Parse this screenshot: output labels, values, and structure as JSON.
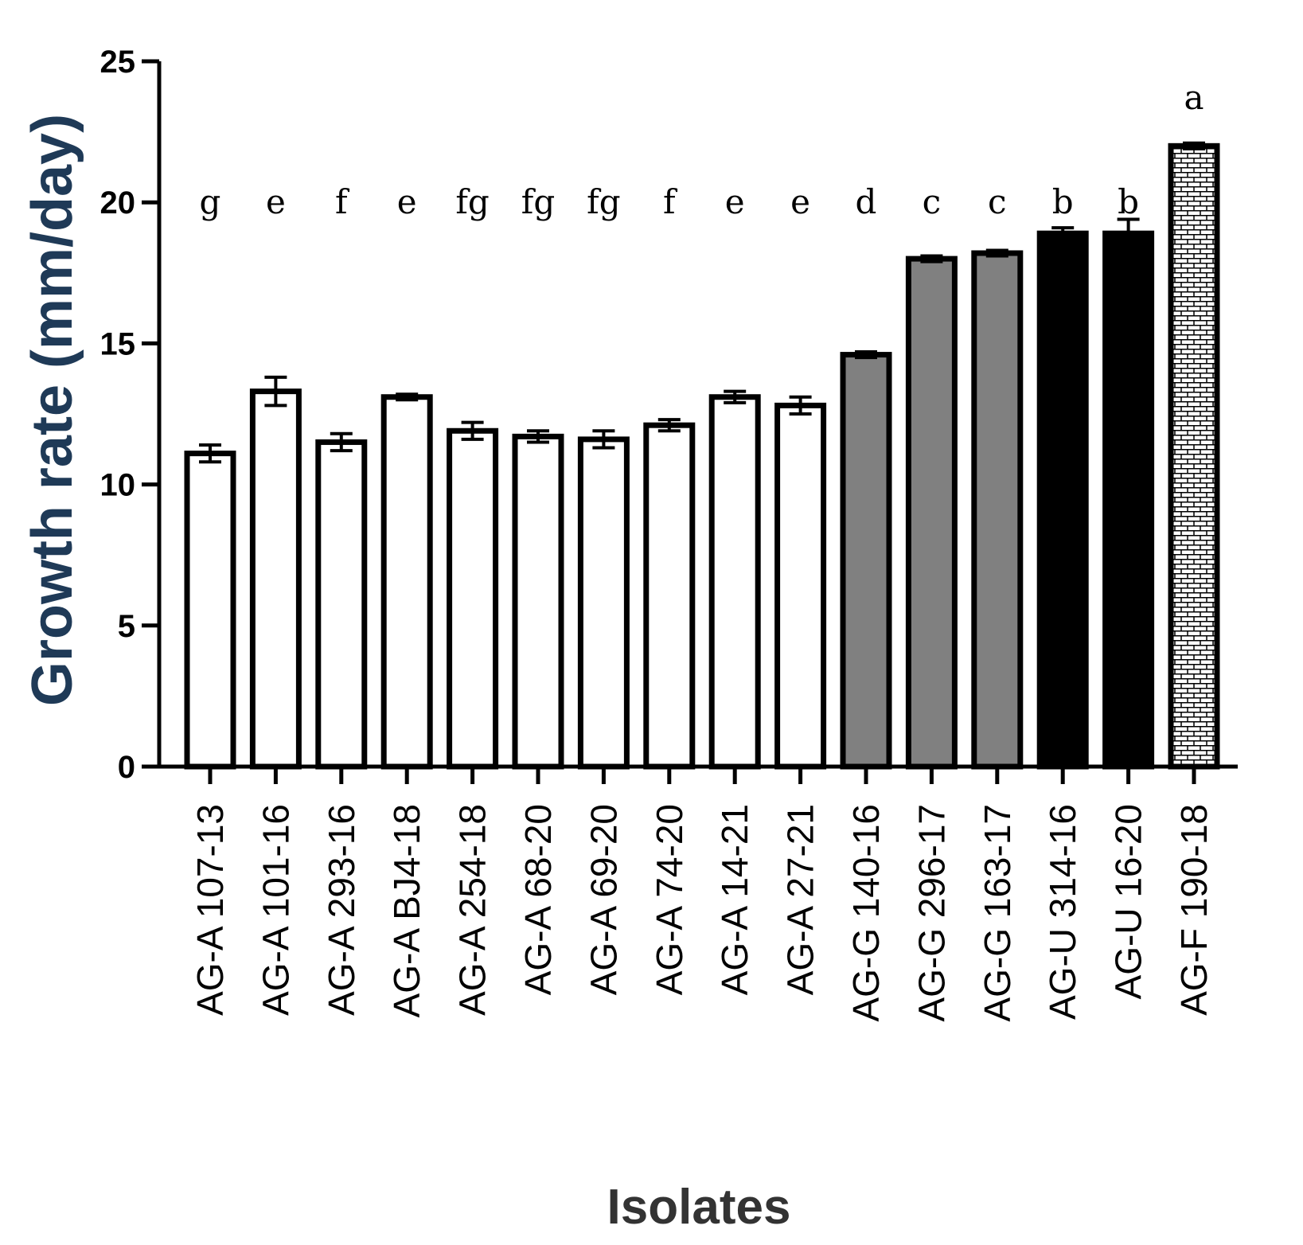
{
  "chart_data": {
    "type": "bar",
    "title": "",
    "xlabel": "Isolates",
    "ylabel": "Growth rate (mm/day)",
    "ylim": [
      0,
      25
    ],
    "yticks": [
      0,
      5,
      10,
      15,
      20,
      25
    ],
    "categories": [
      "AG-A 107-13",
      "AG-A 101-16",
      "AG-A 293-16",
      "AG-A BJ4-18",
      "AG-A 254-18",
      "AG-A 68-20",
      "AG-A 69-20",
      "AG-A 74-20",
      "AG-A 14-21",
      "AG-A 27-21",
      "AG-G 140-16",
      "AG-G 296-17",
      "AG-G 163-17",
      "AG-U 314-16",
      "AG-U 16-20",
      "AG-F 190-18"
    ],
    "values": [
      11.1,
      13.3,
      11.5,
      13.1,
      11.9,
      11.7,
      11.6,
      12.1,
      13.1,
      12.8,
      14.6,
      18.0,
      18.2,
      18.9,
      18.9,
      22.0
    ],
    "errors": [
      0.3,
      0.5,
      0.3,
      0.1,
      0.3,
      0.2,
      0.3,
      0.2,
      0.2,
      0.3,
      0.1,
      0.1,
      0.1,
      0.2,
      0.5,
      0.1
    ],
    "significance": [
      "g",
      "e",
      "f",
      "e",
      "fg",
      "fg",
      "fg",
      "f",
      "e",
      "e",
      "d",
      "c",
      "c",
      "b",
      "b",
      "a"
    ],
    "groups": [
      "AG-A",
      "AG-A",
      "AG-A",
      "AG-A",
      "AG-A",
      "AG-A",
      "AG-A",
      "AG-A",
      "AG-A",
      "AG-A",
      "AG-G",
      "AG-G",
      "AG-G",
      "AG-U",
      "AG-U",
      "AG-F"
    ],
    "group_fills": {
      "AG-A": "#ffffff",
      "AG-G": "#808080",
      "AG-U": "#000000",
      "AG-F": "brick-pattern"
    },
    "colors": {
      "ylabel": "#1f3a57",
      "axis": "#000000"
    }
  }
}
